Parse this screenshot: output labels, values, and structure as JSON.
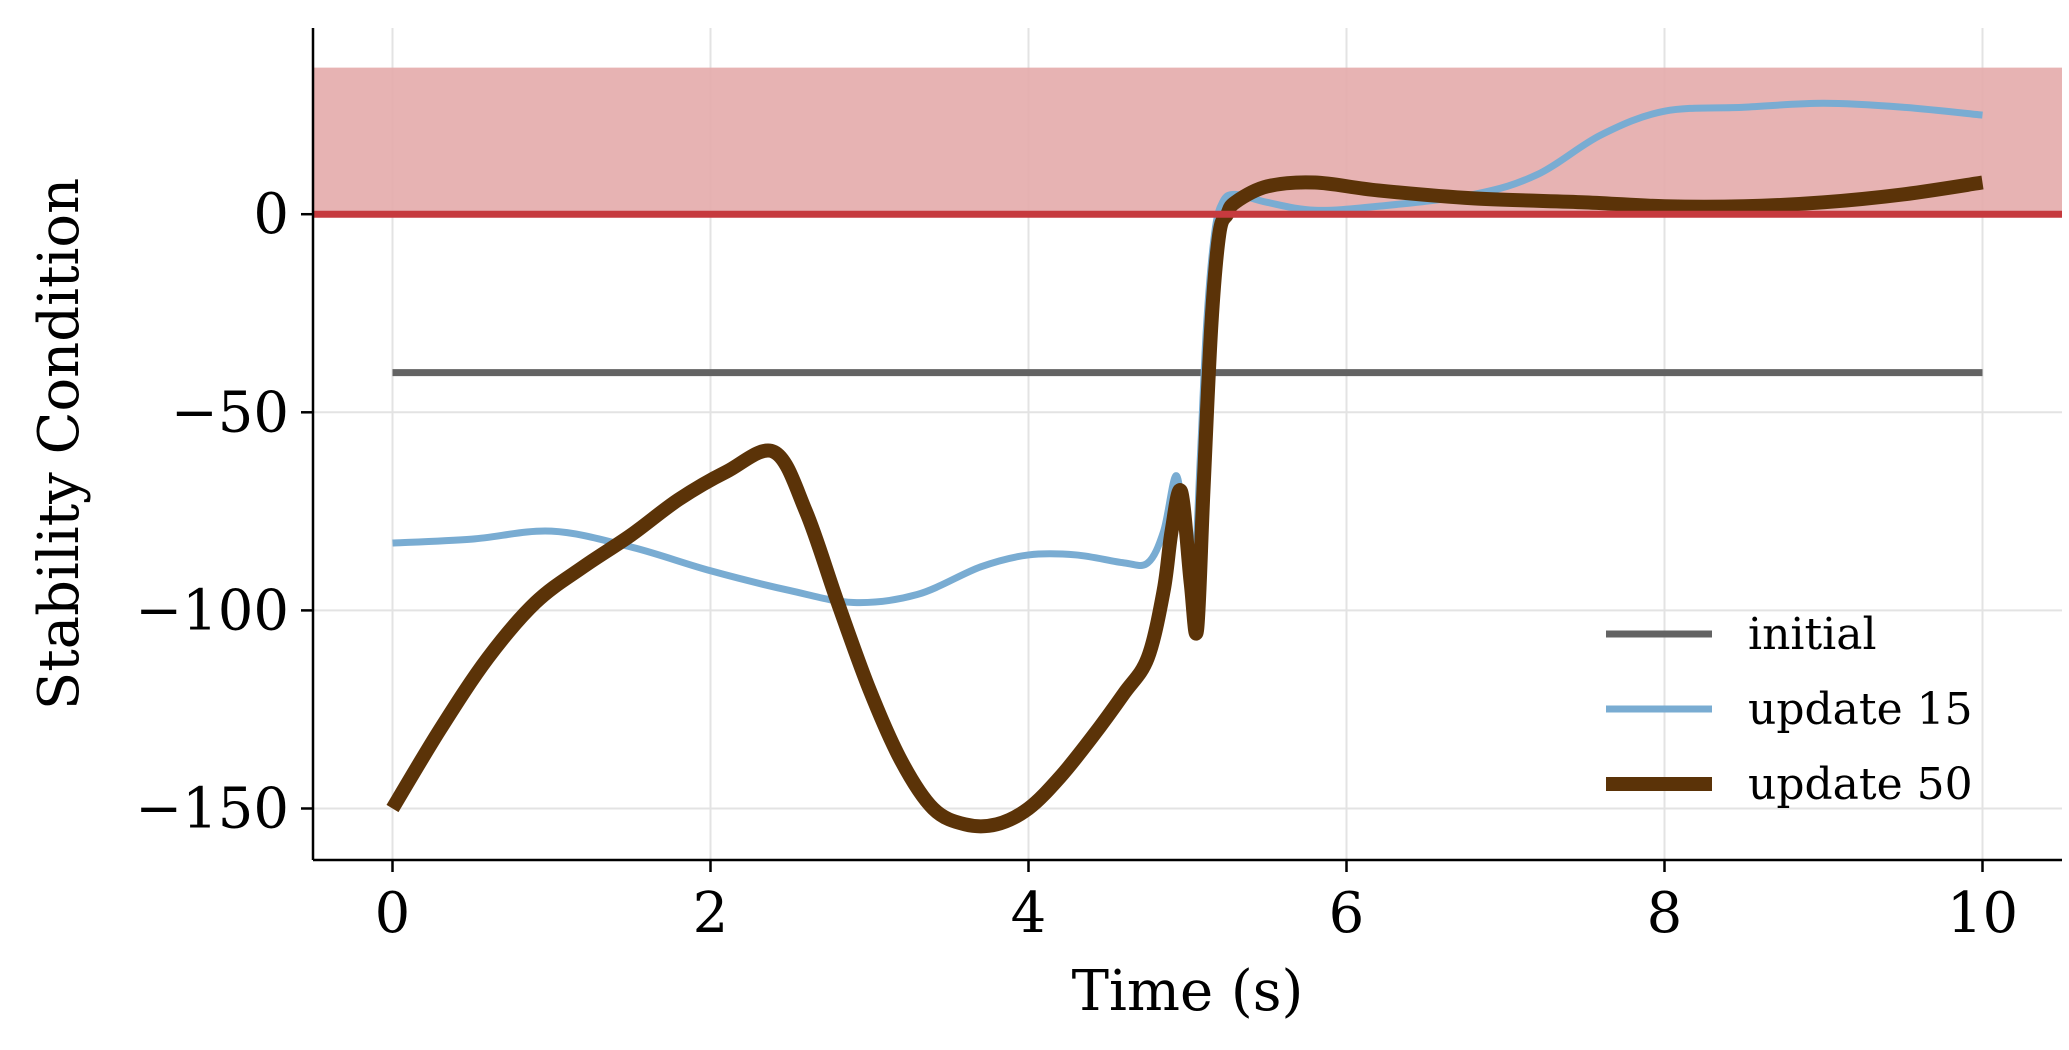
{
  "chart_data": {
    "type": "line",
    "title": "",
    "xlabel": "Time (s)",
    "ylabel": "Stability Condition",
    "xlim": [
      -0.5,
      10.5
    ],
    "ylim": [
      -163,
      47
    ],
    "xticks": [
      0,
      2,
      4,
      6,
      8,
      10
    ],
    "xtick_labels": [
      "0",
      "2",
      "4",
      "6",
      "8",
      "10"
    ],
    "yticks": [
      -150,
      -100,
      -50,
      0
    ],
    "ytick_labels": [
      "−150",
      "−100",
      "−50",
      "0"
    ],
    "grid": true,
    "legend_position": "lower-right",
    "unstable_region": {
      "y_from": 0,
      "y_to": 37,
      "color": "#e5acad",
      "boundary_color": "#c63a3e"
    },
    "series": [
      {
        "name": "initial",
        "color": "#636363",
        "x": [
          0,
          10
        ],
        "y": [
          -40,
          -40
        ]
      },
      {
        "name": "update 15",
        "color": "#79acd2",
        "x": [
          0,
          0.5,
          1.0,
          1.5,
          2.0,
          2.5,
          2.9,
          3.3,
          3.7,
          4.0,
          4.3,
          4.6,
          4.75,
          4.85,
          4.93,
          4.98,
          5.03,
          5.08,
          5.12,
          5.17,
          5.22,
          5.3,
          5.5,
          5.8,
          6.2,
          6.8,
          7.2,
          7.6,
          8.0,
          8.5,
          9.0,
          9.5,
          10.0
        ],
        "y": [
          -83,
          -82,
          -80,
          -84,
          -90,
          -95,
          -98,
          -96,
          -89,
          -86,
          -86,
          -88,
          -88,
          -80,
          -66,
          -82,
          -100,
          -62,
          -28,
          -5,
          3,
          5,
          3,
          1,
          2,
          5,
          10,
          20,
          26,
          27,
          28,
          27,
          25
        ]
      },
      {
        "name": "update 50",
        "color": "#5b3308",
        "x": [
          0,
          0.3,
          0.6,
          0.9,
          1.2,
          1.5,
          1.8,
          2.1,
          2.4,
          2.6,
          2.8,
          3.0,
          3.2,
          3.4,
          3.6,
          3.8,
          4.0,
          4.2,
          4.4,
          4.6,
          4.75,
          4.85,
          4.9,
          4.96,
          5.02,
          5.06,
          5.1,
          5.15,
          5.2,
          5.25,
          5.3,
          5.5,
          5.8,
          6.2,
          6.8,
          7.5,
          8.0,
          8.5,
          9.0,
          9.5,
          10.0
        ],
        "y": [
          -150,
          -130,
          -112,
          -98,
          -89,
          -81,
          -72,
          -65,
          -60,
          -75,
          -98,
          -120,
          -138,
          -150,
          -154,
          -154,
          -150,
          -142,
          -132,
          -121,
          -112,
          -95,
          -80,
          -70,
          -93,
          -105,
          -70,
          -28,
          -5,
          0,
          3,
          7,
          8,
          6,
          4,
          3,
          2,
          2,
          3,
          5,
          8
        ]
      }
    ]
  }
}
